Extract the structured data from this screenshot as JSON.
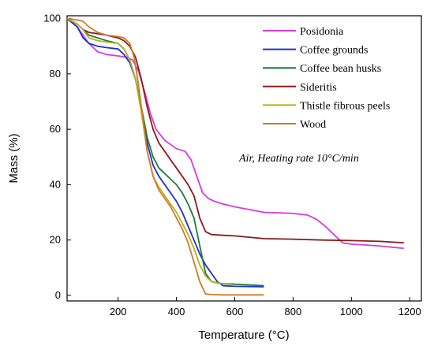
{
  "chart_data": {
    "type": "line",
    "title": "",
    "xlabel": "Temperature (°C)",
    "ylabel": "Mass (%)",
    "xlim": [
      25,
      1240
    ],
    "ylim": [
      -2,
      101
    ],
    "xticks": [
      200,
      400,
      600,
      800,
      1000,
      1200
    ],
    "yticks": [
      0,
      20,
      40,
      60,
      80,
      100
    ],
    "grid": false,
    "legend_position": "top-right",
    "annotation": "Air, Heating rate 10°C/min",
    "series": [
      {
        "name": "Posidonia",
        "color": "#d63be0",
        "x": [
          25,
          60,
          80,
          100,
          130,
          160,
          200,
          230,
          250,
          270,
          290,
          310,
          330,
          360,
          400,
          430,
          450,
          470,
          490,
          510,
          530,
          560,
          600,
          650,
          700,
          750,
          800,
          850,
          880,
          910,
          940,
          960,
          970,
          1000,
          1050,
          1100,
          1150,
          1180
        ],
        "y": [
          100,
          97,
          94,
          91,
          88,
          87,
          86.5,
          86,
          85,
          81,
          74,
          66,
          60,
          56,
          53,
          52,
          49,
          43,
          37,
          35,
          34,
          33,
          32,
          31,
          30,
          29.8,
          29.6,
          29,
          27.5,
          25,
          22,
          20,
          19,
          18.5,
          18.2,
          17.8,
          17.3,
          17
        ]
      },
      {
        "name": "Coffee grounds",
        "color": "#1f2fd2",
        "x": [
          25,
          60,
          80,
          100,
          130,
          160,
          200,
          220,
          240,
          260,
          280,
          300,
          320,
          340,
          360,
          380,
          400,
          420,
          440,
          460,
          480,
          500,
          520,
          540,
          560,
          600,
          650,
          700
        ],
        "y": [
          100,
          97,
          93,
          91,
          90,
          89.5,
          89,
          87,
          84,
          78,
          67,
          55,
          47,
          43,
          40,
          37,
          34,
          30,
          25,
          20,
          15,
          11,
          8,
          5,
          3.5,
          3.3,
          3.2,
          3.1
        ]
      },
      {
        "name": "Coffee bean husks",
        "color": "#1e7a3c",
        "x": [
          25,
          60,
          80,
          100,
          130,
          160,
          200,
          220,
          240,
          260,
          280,
          300,
          320,
          340,
          360,
          380,
          400,
          420,
          440,
          460,
          480,
          500,
          520,
          540,
          560,
          600,
          650,
          700
        ],
        "y": [
          100,
          98,
          96,
          94,
          93,
          92,
          91,
          89,
          85,
          78,
          68,
          57,
          50,
          46,
          44,
          42,
          40,
          37,
          33,
          28,
          18,
          8,
          5,
          4.5,
          4.2,
          4,
          3.8,
          3.5
        ]
      },
      {
        "name": "Sideritis",
        "color": "#8b1a1a",
        "x": [
          25,
          60,
          80,
          100,
          130,
          160,
          200,
          220,
          240,
          260,
          280,
          300,
          320,
          340,
          360,
          380,
          400,
          420,
          440,
          460,
          480,
          500,
          520,
          560,
          600,
          700,
          800,
          900,
          1000,
          1100,
          1180
        ],
        "y": [
          100,
          98,
          96,
          95,
          94.5,
          94,
          93,
          92,
          90,
          86,
          78,
          68,
          60,
          55,
          52,
          49,
          46,
          43,
          40,
          36,
          28,
          23,
          22,
          21.7,
          21.5,
          20.5,
          20.3,
          20,
          19.8,
          19.5,
          19
        ]
      },
      {
        "name": "Thistle fibrous peels",
        "color": "#b3b31a",
        "x": [
          25,
          60,
          80,
          100,
          130,
          160,
          200,
          220,
          240,
          260,
          280,
          300,
          320,
          340,
          360,
          380,
          400,
          420,
          440,
          460,
          480,
          500,
          520,
          540,
          560,
          600
        ],
        "y": [
          100,
          98,
          96,
          93,
          92,
          91.5,
          91,
          89,
          85,
          78,
          66,
          52,
          43,
          39,
          36,
          33,
          30,
          26,
          22,
          17,
          11,
          7,
          5,
          4.5,
          4.3,
          4.3
        ]
      },
      {
        "name": "Wood",
        "color": "#d2782a",
        "x": [
          25,
          60,
          80,
          100,
          130,
          160,
          200,
          220,
          240,
          255,
          270,
          285,
          300,
          320,
          340,
          360,
          380,
          400,
          420,
          440,
          460,
          480,
          500,
          520,
          560,
          600,
          700
        ],
        "y": [
          100,
          99.5,
          99,
          97,
          95,
          94,
          93.5,
          93,
          91,
          86,
          76,
          64,
          52,
          43,
          38,
          35,
          32,
          28,
          24,
          19,
          12,
          5,
          0.5,
          0.3,
          0.2,
          0.2,
          0.2
        ]
      }
    ]
  }
}
